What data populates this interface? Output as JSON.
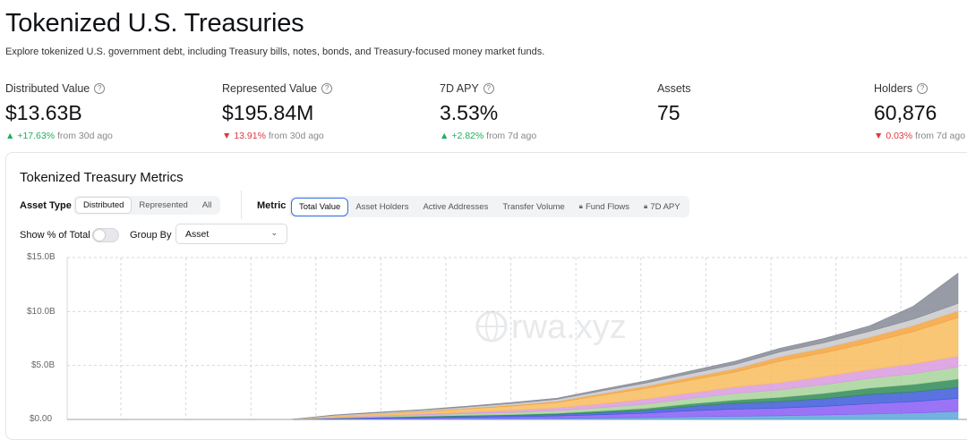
{
  "page": {
    "title": "Tokenized U.S. Treasuries",
    "subtitle": "Explore tokenized U.S. government debt, including Treasury bills, notes, bonds, and Treasury-focused money market funds."
  },
  "stats": [
    {
      "label": "Distributed Value",
      "value": "$13.63B",
      "change": "+17.63%",
      "change_suffix": "from 30d ago",
      "direction": "up",
      "has_info": true
    },
    {
      "label": "Represented Value",
      "value": "$195.84M",
      "change": "13.91%",
      "change_suffix": "from 30d ago",
      "direction": "down",
      "has_info": true
    },
    {
      "label": "7D APY",
      "value": "3.53%",
      "change": "+2.82%",
      "change_suffix": "from 7d ago",
      "direction": "up",
      "has_info": true
    },
    {
      "label": "Assets",
      "value": "75",
      "change": "",
      "change_suffix": "",
      "direction": "",
      "has_info": false
    },
    {
      "label": "Holders",
      "value": "60,876",
      "change": "0.03%",
      "change_suffix": "from 7d ago",
      "direction": "down",
      "has_info": true
    }
  ],
  "card": {
    "title": "Tokenized Treasury Metrics",
    "asset_type_label": "Asset Type",
    "asset_type_options": [
      "Distributed",
      "Represented",
      "All"
    ],
    "asset_type_selected": "Distributed",
    "metric_label": "Metric",
    "metric_options": [
      "Total Value",
      "Asset Holders",
      "Active Addresses",
      "Transfer Volume",
      "Fund Flows",
      "7D APY"
    ],
    "metric_locked": [
      "Fund Flows",
      "7D APY"
    ],
    "metric_selected": "Total Value",
    "show_pct_label": "Show % of Total",
    "show_pct_on": false,
    "group_by_label": "Group By",
    "group_by_value": "Asset"
  },
  "chart_data": {
    "type": "area",
    "stacked": true,
    "y_tick_labels": [
      "$15.0B",
      "$10.0B",
      "$5.0B",
      "$0.00"
    ],
    "ylim": [
      0,
      15
    ],
    "y_unit": "billions USD",
    "grid": true,
    "watermark": "rwa.xyz",
    "x_index": [
      0,
      5,
      10,
      15,
      20,
      25,
      30,
      35,
      40,
      45,
      50,
      55,
      60,
      65,
      70,
      75,
      80,
      85,
      90,
      95,
      100
    ],
    "series": [
      {
        "color": "#5aa6d8",
        "values": [
          0,
          0,
          0,
          0,
          0,
          0,
          0.02,
          0.05,
          0.07,
          0.09,
          0.1,
          0.12,
          0.14,
          0.18,
          0.25,
          0.3,
          0.35,
          0.42,
          0.5,
          0.6,
          0.75
        ]
      },
      {
        "color": "#8a5cf5",
        "values": [
          0,
          0,
          0,
          0,
          0,
          0,
          0.05,
          0.08,
          0.1,
          0.12,
          0.15,
          0.2,
          0.3,
          0.4,
          0.55,
          0.65,
          0.7,
          0.8,
          0.95,
          1.05,
          1.2
        ]
      },
      {
        "color": "#3d5bd9",
        "values": [
          0,
          0,
          0,
          0,
          0,
          0,
          0.03,
          0.05,
          0.08,
          0.1,
          0.12,
          0.15,
          0.2,
          0.25,
          0.4,
          0.55,
          0.6,
          0.7,
          0.85,
          0.9,
          1.0
        ]
      },
      {
        "color": "#2f8a57",
        "values": [
          0,
          0,
          0,
          0,
          0,
          0,
          0.02,
          0.03,
          0.05,
          0.07,
          0.08,
          0.1,
          0.15,
          0.2,
          0.25,
          0.3,
          0.4,
          0.5,
          0.6,
          0.7,
          0.8
        ]
      },
      {
        "color": "#a8d39a",
        "values": [
          0,
          0,
          0,
          0,
          0,
          0,
          0.05,
          0.08,
          0.12,
          0.15,
          0.2,
          0.25,
          0.3,
          0.4,
          0.5,
          0.6,
          0.7,
          0.8,
          0.9,
          1.0,
          1.1
        ]
      },
      {
        "color": "#d99adf",
        "values": [
          0,
          0,
          0,
          0,
          0,
          0,
          0.05,
          0.08,
          0.1,
          0.15,
          0.2,
          0.25,
          0.35,
          0.45,
          0.5,
          0.6,
          0.65,
          0.75,
          0.8,
          0.9,
          1.0
        ]
      },
      {
        "color": "#f7bc5d",
        "values": [
          0,
          0,
          0,
          0,
          0,
          0,
          0.1,
          0.15,
          0.2,
          0.3,
          0.4,
          0.5,
          0.8,
          1.0,
          1.2,
          1.4,
          2.0,
          2.2,
          2.5,
          3.0,
          3.6
        ]
      },
      {
        "color": "#f4a23c",
        "values": [
          0,
          0,
          0,
          0,
          0,
          0,
          0.02,
          0.03,
          0.05,
          0.06,
          0.08,
          0.1,
          0.15,
          0.2,
          0.25,
          0.3,
          0.4,
          0.45,
          0.5,
          0.55,
          0.6
        ]
      },
      {
        "color": "#c9c9cd",
        "values": [
          0,
          0,
          0,
          0,
          0,
          0,
          0.05,
          0.08,
          0.1,
          0.12,
          0.15,
          0.2,
          0.25,
          0.3,
          0.35,
          0.4,
          0.45,
          0.5,
          0.55,
          0.6,
          0.7
        ]
      },
      {
        "color": "#858a96",
        "values": [
          0,
          0,
          0,
          0,
          0,
          0,
          0.03,
          0.05,
          0.05,
          0.08,
          0.1,
          0.1,
          0.15,
          0.2,
          0.25,
          0.3,
          0.35,
          0.4,
          0.5,
          1.2,
          2.8
        ]
      }
    ]
  }
}
